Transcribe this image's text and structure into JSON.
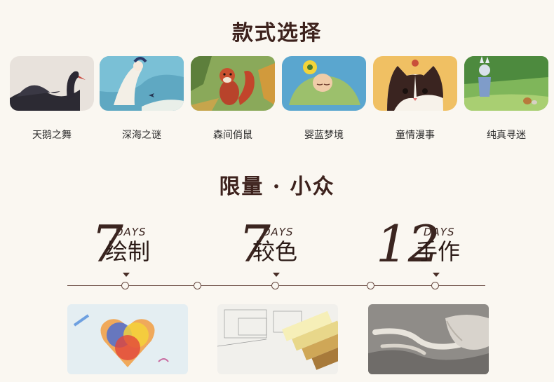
{
  "section_styles": {
    "title": "款式选择",
    "items": [
      {
        "label": "天鹅之舞",
        "icon": "black-swan-illustration"
      },
      {
        "label": "深海之谜",
        "icon": "sea-maiden-illustration"
      },
      {
        "label": "森间俏鼠",
        "icon": "red-squirrel-illustration"
      },
      {
        "label": "婴蓝梦境",
        "icon": "sleeping-child-illustration"
      },
      {
        "label": "童情漫事",
        "icon": "calico-cat-illustration"
      },
      {
        "label": "纯真寻迷",
        "icon": "bunny-girl-illustration"
      }
    ]
  },
  "section_limited": {
    "title": "限量 · 小众",
    "stats": [
      {
        "number": "7",
        "unit": "DAYS",
        "label": "绘制"
      },
      {
        "number": "7",
        "unit": "DAYS",
        "label": "较色"
      },
      {
        "number": "12",
        "unit": "DAYS",
        "label": "手作"
      }
    ]
  },
  "colors": {
    "background": "#faf7f1",
    "heading": "#3d221d",
    "accent_line": "#6a4b42"
  }
}
